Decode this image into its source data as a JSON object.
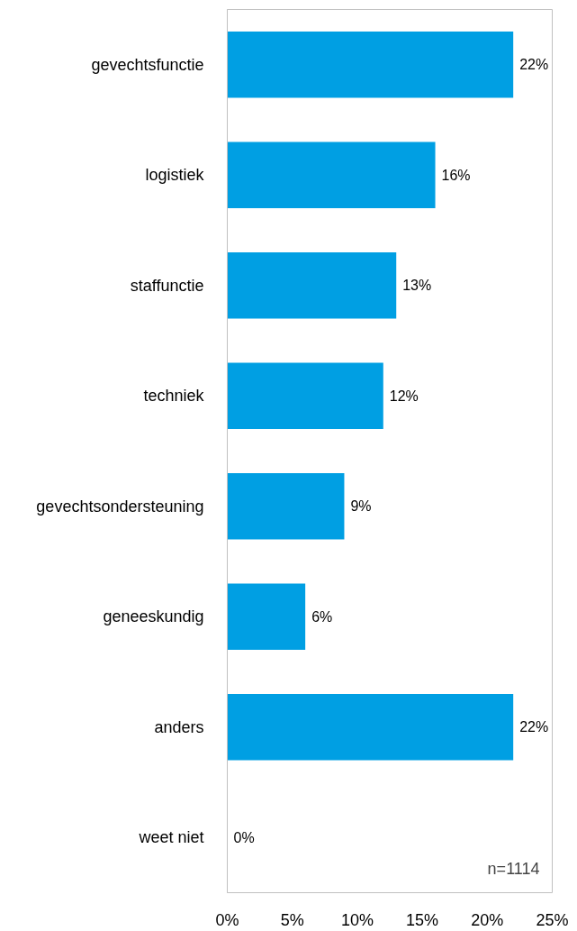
{
  "chart_data": {
    "type": "bar",
    "orientation": "horizontal",
    "categories": [
      "gevechtsfunctie",
      "logistiek",
      "staffunctie",
      "techniek",
      "gevechtsondersteuning",
      "geneeskundig",
      "anders",
      "weet niet"
    ],
    "values": [
      22,
      16,
      13,
      12,
      9,
      6,
      22,
      0
    ],
    "value_labels": [
      "22%",
      "16%",
      "13%",
      "12%",
      "9%",
      "6%",
      "22%",
      "0%"
    ],
    "color": "#009fe3",
    "xlim": [
      0,
      25
    ],
    "xticks": [
      {
        "value": 0,
        "label": "0%"
      },
      {
        "value": 5,
        "label": "5%"
      },
      {
        "value": 10,
        "label": "10%"
      },
      {
        "value": 15,
        "label": "15%"
      },
      {
        "value": 20,
        "label": "20%"
      },
      {
        "value": 25,
        "label": "25%"
      }
    ],
    "grid": false,
    "annotations": [
      "n=1114"
    ]
  }
}
